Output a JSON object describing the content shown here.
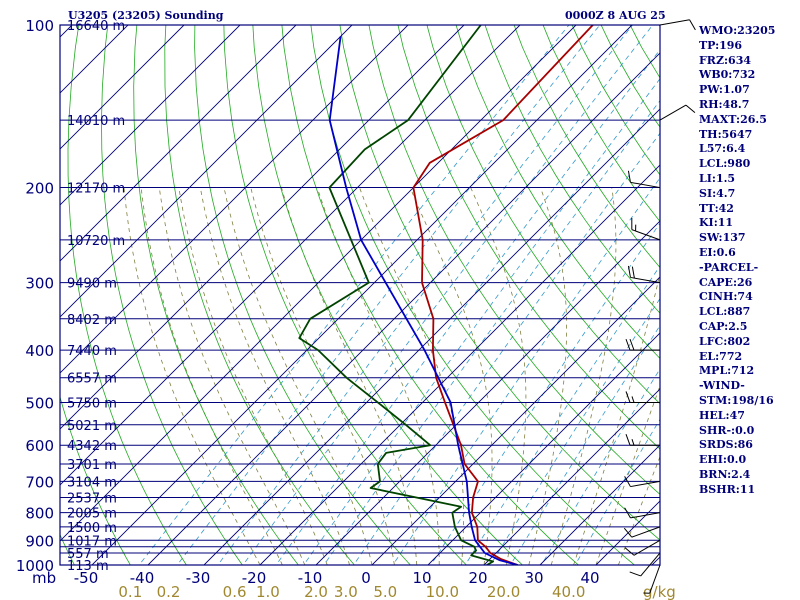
{
  "header": {
    "title": "U3205 (23205) Sounding",
    "timestamp": "0000Z  8 AUG 25"
  },
  "colors": {
    "ink": "#00007a",
    "temperature": "#a80000",
    "dewpoint": "#004400",
    "parcel": "#0000c8",
    "adiabat": "#22aa22",
    "mixing_ratio": "#3399cc",
    "moist_adiabat": "#808040",
    "isotherm": "#00007a",
    "mix_label": "#a08830"
  },
  "indices": [
    "WMO:23205",
    "TP:196",
    "FRZ:634",
    "WB0:732",
    "PW:1.07",
    "RH:48.7",
    "MAXT:26.5",
    "TH:5647",
    "L57:6.4",
    "LCL:980",
    "LI:1.5",
    "SI:4.7",
    "TT:42",
    "KI:11",
    "SW:137",
    "EI:0.6",
    "-PARCEL-",
    "CAPE:26",
    "CINH:74",
    "LCL:887",
    "CAP:2.5",
    "LFC:802",
    "EL:772",
    "MPL:712",
    "-WIND-",
    "STM:198/16",
    "HEL:47",
    "SHR-:0.0",
    "SRDS:86",
    "EHI:0.0",
    "BRN:2.4",
    "BSHR:11"
  ],
  "chart_data": {
    "type": "line",
    "subtype": "skew-T log-P sounding",
    "pressure_unit": "mb",
    "temperature_unit_ticks": [
      "-50",
      "-40",
      "-30",
      "-20",
      "-10",
      "0",
      "10",
      "20",
      "30",
      "40"
    ],
    "mixing_ratio_unit": "g/kg",
    "y_axis": {
      "scale": "log",
      "ylim": [
        1000,
        100
      ],
      "label": "mb"
    },
    "x_axis": {
      "xlim": [
        -50,
        50
      ],
      "skewed": true
    },
    "pressure_ticks": [
      100,
      200,
      300,
      400,
      500,
      600,
      700,
      800,
      900,
      1000
    ],
    "pressure_tick_labels": [
      "100",
      "200",
      "300",
      "400",
      "500",
      "600",
      "700",
      "800",
      "900",
      "1000"
    ],
    "pressure_lines": [
      100,
      150,
      200,
      250,
      300,
      350,
      400,
      450,
      500,
      550,
      600,
      650,
      700,
      750,
      800,
      850,
      900,
      925,
      950,
      1000
    ],
    "isotherms": [
      -150,
      -140,
      -130,
      -120,
      -110,
      -100,
      -90,
      -80,
      -70,
      -60,
      -50,
      -40,
      -30,
      -20,
      -10,
      0,
      10,
      20,
      30,
      40,
      50
    ],
    "isotherm_labels": [
      {
        "t": -50,
        "text": "-50"
      },
      {
        "t": -40,
        "text": "-40"
      },
      {
        "t": -30,
        "text": "-30"
      },
      {
        "t": -20,
        "text": "-20"
      },
      {
        "t": -10,
        "text": "-10"
      },
      {
        "t": 0,
        "text": "0"
      },
      {
        "t": 10,
        "text": "10"
      },
      {
        "t": 20,
        "text": "20"
      },
      {
        "t": 30,
        "text": "30"
      },
      {
        "t": 40,
        "text": "40"
      }
    ],
    "mixing_ratio_labels": [
      {
        "w": 0.1,
        "text": "0.1"
      },
      {
        "w": 0.2,
        "text": "0.2"
      },
      {
        "w": 0.6,
        "text": "0.6"
      },
      {
        "w": 1.0,
        "text": "1.0"
      },
      {
        "w": 2.0,
        "text": "2.0"
      },
      {
        "w": 3.0,
        "text": "3.0"
      },
      {
        "w": 5.0,
        "text": "5.0"
      },
      {
        "w": 10.0,
        "text": "10.0"
      },
      {
        "w": 20.0,
        "text": "20.0"
      },
      {
        "w": 40.0,
        "text": "40.0"
      }
    ],
    "mixing_ratio_lines": [
      0.1,
      0.2,
      0.4,
      0.6,
      1.0,
      1.5,
      2.0,
      3.0,
      5.0,
      8.0,
      12.0,
      16.0,
      20.0,
      28.0,
      40.0
    ],
    "height_labels": [
      {
        "p": 100,
        "text": "16640 m"
      },
      {
        "p": 150,
        "text": "14010 m"
      },
      {
        "p": 200,
        "text": "12170 m"
      },
      {
        "p": 250,
        "text": "10720 m"
      },
      {
        "p": 300,
        "text": "9490 m"
      },
      {
        "p": 350,
        "text": "8402 m"
      },
      {
        "p": 400,
        "text": "7440 m"
      },
      {
        "p": 450,
        "text": "6557 m"
      },
      {
        "p": 500,
        "text": "5750 m"
      },
      {
        "p": 550,
        "text": "5021 m"
      },
      {
        "p": 600,
        "text": "4342 m"
      },
      {
        "p": 650,
        "text": "3701 m"
      },
      {
        "p": 700,
        "text": "3104 m"
      },
      {
        "p": 750,
        "text": "2537 m"
      },
      {
        "p": 800,
        "text": "2005 m"
      },
      {
        "p": 850,
        "text": "1500 m"
      },
      {
        "p": 900,
        "text": "1017 m"
      },
      {
        "p": 950,
        "text": "557 m"
      },
      {
        "p": 1000,
        "text": "113 m"
      }
    ],
    "series": [
      {
        "name": "Temperature",
        "points": [
          {
            "p": 1000,
            "t": 26.0
          },
          {
            "p": 975,
            "t": 22.0
          },
          {
            "p": 950,
            "t": 19.0
          },
          {
            "p": 925,
            "t": 17.0
          },
          {
            "p": 900,
            "t": 14.5
          },
          {
            "p": 850,
            "t": 12.0
          },
          {
            "p": 800,
            "t": 8.5
          },
          {
            "p": 750,
            "t": 6.0
          },
          {
            "p": 700,
            "t": 4.0
          },
          {
            "p": 650,
            "t": -1.5
          },
          {
            "p": 600,
            "t": -5.5
          },
          {
            "p": 550,
            "t": -10.5
          },
          {
            "p": 500,
            "t": -16.0
          },
          {
            "p": 450,
            "t": -22.0
          },
          {
            "p": 400,
            "t": -27.5
          },
          {
            "p": 350,
            "t": -33.0
          },
          {
            "p": 300,
            "t": -41.5
          },
          {
            "p": 250,
            "t": -49.0
          },
          {
            "p": 200,
            "t": -60.0
          },
          {
            "p": 180,
            "t": -61.5
          },
          {
            "p": 150,
            "t": -56.0
          },
          {
            "p": 100,
            "t": -57.0
          }
        ]
      },
      {
        "name": "Dewpoint",
        "points": [
          {
            "p": 1000,
            "t": 20.5
          },
          {
            "p": 985,
            "t": 21.0
          },
          {
            "p": 960,
            "t": 16.0
          },
          {
            "p": 940,
            "t": 16.0
          },
          {
            "p": 925,
            "t": 15.0
          },
          {
            "p": 900,
            "t": 11.5
          },
          {
            "p": 850,
            "t": 8.0
          },
          {
            "p": 800,
            "t": 5.0
          },
          {
            "p": 780,
            "t": 5.5
          },
          {
            "p": 720,
            "t": -14.0
          },
          {
            "p": 700,
            "t": -13.5
          },
          {
            "p": 650,
            "t": -17.0
          },
          {
            "p": 620,
            "t": -17.5
          },
          {
            "p": 600,
            "t": -11.0
          },
          {
            "p": 550,
            "t": -19.0
          },
          {
            "p": 500,
            "t": -28.0
          },
          {
            "p": 450,
            "t": -38.0
          },
          {
            "p": 400,
            "t": -48.0
          },
          {
            "p": 380,
            "t": -53.5
          },
          {
            "p": 350,
            "t": -55.0
          },
          {
            "p": 300,
            "t": -51.0
          },
          {
            "p": 200,
            "t": -75.0
          },
          {
            "p": 170,
            "t": -75.5
          },
          {
            "p": 150,
            "t": -73.0
          },
          {
            "p": 100,
            "t": -77.0
          }
        ]
      },
      {
        "name": "Parcel",
        "points": [
          {
            "p": 1000,
            "t": 26.0
          },
          {
            "p": 980,
            "t": 22.0
          },
          {
            "p": 950,
            "t": 18.0
          },
          {
            "p": 900,
            "t": 14.0
          },
          {
            "p": 850,
            "t": 11.0
          },
          {
            "p": 800,
            "t": 8.0
          },
          {
            "p": 700,
            "t": 2.0
          },
          {
            "p": 600,
            "t": -6.0
          },
          {
            "p": 500,
            "t": -15.0
          },
          {
            "p": 400,
            "t": -29.0
          },
          {
            "p": 300,
            "t": -48.0
          },
          {
            "p": 250,
            "t": -60.0
          },
          {
            "p": 200,
            "t": -72.0
          },
          {
            "p": 150,
            "t": -87.0
          },
          {
            "p": 105,
            "t": -100.0
          }
        ]
      }
    ],
    "wind_barbs": [
      {
        "p": 1000,
        "dir": 200,
        "spd": 5
      },
      {
        "p": 950,
        "dir": 220,
        "spd": 10
      },
      {
        "p": 900,
        "dir": 240,
        "spd": 10
      },
      {
        "p": 850,
        "dir": 250,
        "spd": 10
      },
      {
        "p": 800,
        "dir": 260,
        "spd": 10
      },
      {
        "p": 700,
        "dir": 260,
        "spd": 10
      },
      {
        "p": 600,
        "dir": 270,
        "spd": 15
      },
      {
        "p": 500,
        "dir": 270,
        "spd": 15
      },
      {
        "p": 400,
        "dir": 270,
        "spd": 20
      },
      {
        "p": 300,
        "dir": 280,
        "spd": 20
      },
      {
        "p": 250,
        "dir": 290,
        "spd": 15
      },
      {
        "p": 200,
        "dir": 280,
        "spd": 10
      },
      {
        "p": 150,
        "dir": 60,
        "spd": 10
      },
      {
        "p": 100,
        "dir": 80,
        "spd": 10
      }
    ]
  }
}
